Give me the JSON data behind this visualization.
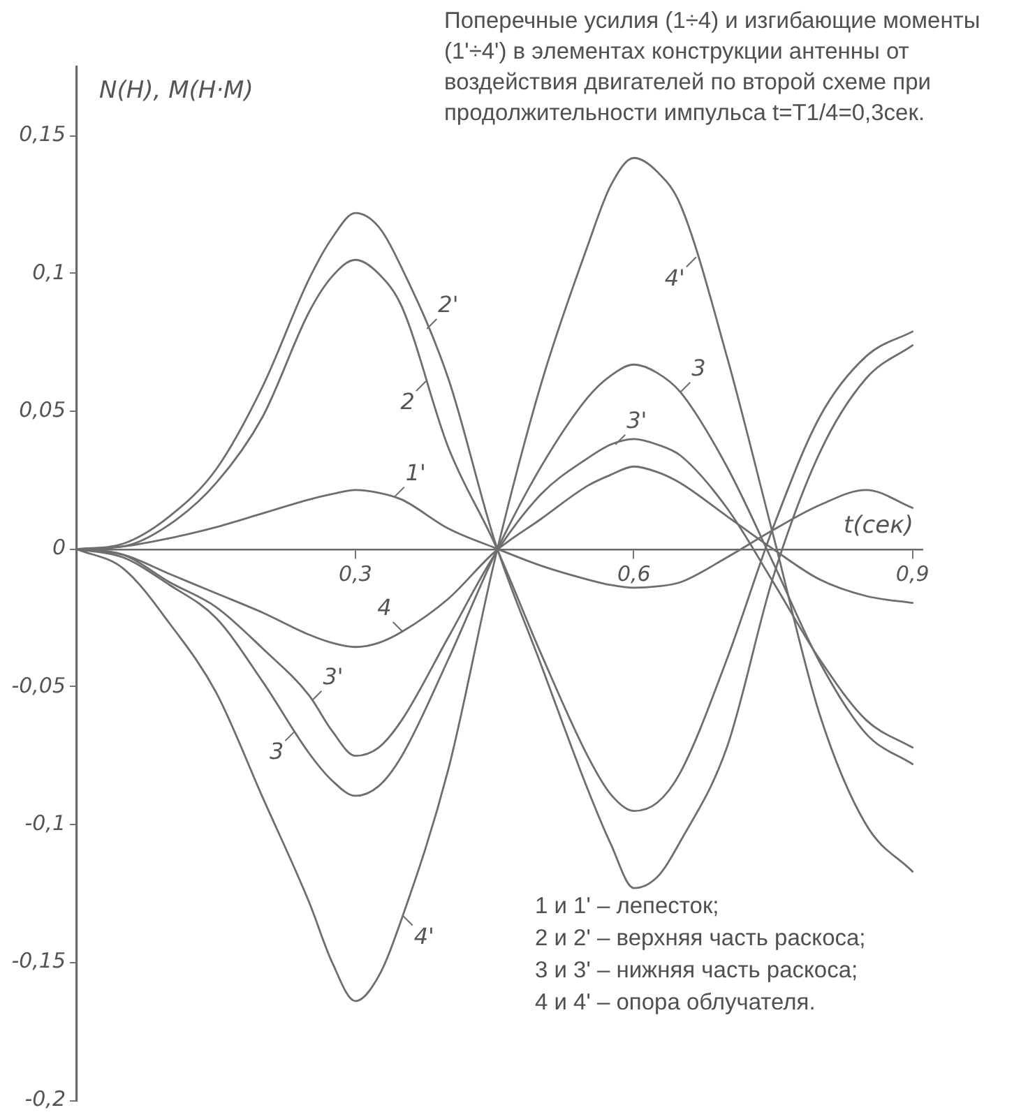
{
  "chart_data": {
    "type": "line",
    "title": "Поперечные усилия (1÷4) и изгибающие моменты (1'÷4') в элементах конструкции антенны от воздействия двигателей по второй схеме при продолжительности импульса t=T1/4=0,3сек.",
    "xlabel": "t(сек)",
    "ylabel": "N(Н), M(Н·М)",
    "x": [
      0,
      0.05,
      0.1,
      0.15,
      0.2,
      0.25,
      0.275,
      0.3,
      0.325,
      0.35,
      0.4,
      0.45,
      0.5,
      0.55,
      0.575,
      0.6,
      0.625,
      0.65,
      0.7,
      0.75,
      0.8,
      0.85,
      0.9
    ],
    "series": [
      {
        "color": "#6e6e6e",
        "values": [
          0,
          0.001,
          0.004,
          0.008,
          0.013,
          0.018,
          0.02,
          0.0215,
          0.0205,
          0.018,
          0.0075,
          0.0005,
          -0.006,
          -0.011,
          -0.013,
          -0.014,
          -0.0135,
          -0.012,
          -0.003,
          0.007,
          0.016,
          0.0215,
          0.015
        ]
      },
      {
        "color": "#6e6e6e",
        "values": [
          0,
          0.001,
          0.009,
          0.024,
          0.048,
          0.086,
          0.099,
          0.105,
          0.1,
          0.088,
          0.037,
          0.002,
          -0.038,
          -0.075,
          -0.089,
          -0.095,
          -0.092,
          -0.081,
          -0.04,
          0.008,
          0.048,
          0.07,
          0.079
        ]
      },
      {
        "color": "#6e6e6e",
        "values": [
          0,
          0.002,
          0.012,
          0.029,
          0.059,
          0.098,
          0.113,
          0.122,
          0.117,
          0.102,
          0.062,
          0.003,
          -0.042,
          -0.087,
          -0.107,
          -0.123,
          -0.119,
          -0.106,
          -0.072,
          -0.01,
          0.035,
          0.062,
          0.074
        ]
      },
      {
        "color": "#6e6e6e",
        "values": [
          0,
          -0.003,
          -0.013,
          -0.025,
          -0.048,
          -0.074,
          -0.084,
          -0.0895,
          -0.086,
          -0.075,
          -0.04,
          -0.002,
          0.03,
          0.055,
          0.063,
          0.067,
          0.064,
          0.057,
          0.03,
          -0.005,
          -0.041,
          -0.067,
          -0.078
        ]
      },
      {
        "color": "#6e6e6e",
        "values": [
          0,
          -0.002,
          -0.012,
          -0.021,
          -0.036,
          -0.053,
          -0.066,
          -0.075,
          -0.072,
          -0.062,
          -0.032,
          -0.002,
          0.02,
          0.033,
          0.038,
          0.04,
          0.038,
          0.034,
          0.015,
          -0.012,
          -0.04,
          -0.062,
          -0.072
        ]
      },
      {
        "color": "#6e6e6e",
        "values": [
          0,
          -0.002,
          -0.009,
          -0.016,
          -0.023,
          -0.031,
          -0.034,
          -0.0355,
          -0.034,
          -0.03,
          -0.018,
          -0.001,
          0.011,
          0.023,
          0.027,
          0.03,
          0.028,
          0.024,
          0.012,
          0,
          -0.011,
          -0.017,
          -0.0195
        ]
      },
      {
        "color": "#6e6e6e",
        "values": [
          0,
          -0.007,
          -0.027,
          -0.052,
          -0.09,
          -0.128,
          -0.15,
          -0.164,
          -0.155,
          -0.134,
          -0.08,
          -0.004,
          0.06,
          0.11,
          0.132,
          0.142,
          0.137,
          0.125,
          0.07,
          0.005,
          -0.06,
          -0.1,
          -0.117
        ]
      }
    ],
    "xlim": [
      0,
      0.91
    ],
    "xticks": [
      {
        "value": 0.3,
        "label": "0,3"
      },
      {
        "value": 0.6,
        "label": "0,6"
      },
      {
        "value": 0.9,
        "label": "0,9"
      }
    ],
    "ylim": [
      -0.2,
      0.175
    ],
    "yticks": [
      {
        "value": -0.2,
        "label": "-0,2"
      },
      {
        "value": -0.15,
        "label": "-0,15"
      },
      {
        "value": -0.1,
        "label": "-0,1"
      },
      {
        "value": -0.05,
        "label": "-0,05"
      },
      0,
      {
        "value": 0.05,
        "label": "0,05"
      },
      {
        "value": 0.1,
        "label": "0,1"
      },
      {
        "value": 0.15,
        "label": "0,15"
      }
    ],
    "annotations": [
      {
        "text": "2'",
        "x": 0.377,
        "y": 0.08
      },
      {
        "text": "2",
        "x": 0.376,
        "y": 0.061
      },
      {
        "text": "1'",
        "x": 0.342,
        "y": 0.019
      },
      {
        "text": "4",
        "x": 0.351,
        "y": -0.03
      },
      {
        "text": "3'",
        "x": 0.253,
        "y": -0.055
      },
      {
        "text": "3",
        "x": 0.235,
        "y": -0.066
      },
      {
        "text": "4'",
        "x": 0.351,
        "y": -0.133
      },
      {
        "text": "4'",
        "x": 0.667,
        "y": 0.106
      },
      {
        "text": "3",
        "x": 0.65,
        "y": 0.057
      },
      {
        "text": "3'",
        "x": 0.58,
        "y": 0.038
      },
      "1 и 1' – лепесток;",
      "2 и 2' – верхняя часть раскоса;",
      "3 и 3' – нижняя часть раскоса;",
      "4 и 4' – опора облучателя."
    ]
  }
}
